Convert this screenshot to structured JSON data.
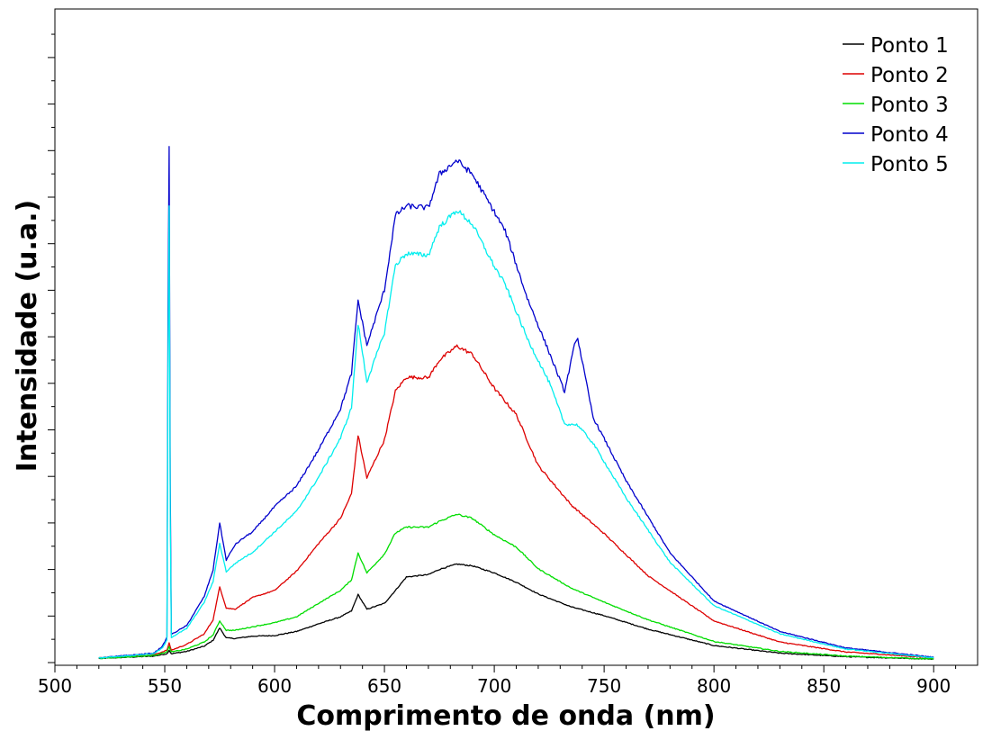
{
  "chart_data": {
    "type": "line",
    "xlabel": "Comprimento de onda (nm)",
    "ylabel": "Intensidade (u.a.)",
    "xlim": [
      500,
      920
    ],
    "ylim": [
      0,
      100
    ],
    "y_ticks_labeled": false,
    "x_ticks": [
      "500",
      "550",
      "600",
      "650",
      "700",
      "750",
      "800",
      "850",
      "900"
    ],
    "grid": false,
    "legend_position": "top-right",
    "series": [
      {
        "name": "Ponto 1",
        "color": "#000000",
        "x": [
          520,
          545,
          551,
          552,
          553,
          560,
          568,
          572,
          575,
          578,
          582,
          590,
          600,
          610,
          620,
          630,
          635,
          638,
          642,
          650,
          655,
          660,
          670,
          675,
          683,
          690,
          700,
          710,
          720,
          735,
          750,
          770,
          800,
          830,
          860,
          900
        ],
        "y": [
          0.4,
          0.8,
          1.2,
          1.8,
          1.2,
          1.6,
          2.5,
          3.5,
          5.6,
          3.9,
          3.8,
          4.2,
          4.3,
          5.0,
          6.3,
          7.5,
          8.5,
          11.3,
          8.8,
          9.8,
          12.0,
          14.3,
          14.7,
          15.6,
          16.5,
          16.2,
          15.0,
          13.4,
          11.4,
          9.2,
          7.7,
          5.4,
          2.6,
          1.3,
          0.7,
          0.3
        ]
      },
      {
        "name": "Ponto 2",
        "color": "#dd0000",
        "x": [
          520,
          545,
          551,
          552,
          553,
          560,
          568,
          572,
          575,
          578,
          582,
          590,
          600,
          610,
          620,
          630,
          635,
          638,
          642,
          650,
          655,
          660,
          670,
          675,
          683,
          690,
          700,
          710,
          720,
          735,
          750,
          770,
          800,
          830,
          860,
          900
        ],
        "y": [
          0.5,
          1.0,
          1.8,
          3.0,
          1.8,
          2.8,
          4.6,
          7.0,
          12.6,
          9.0,
          8.8,
          10.8,
          12.0,
          15.3,
          20.0,
          24.3,
          28.5,
          38.5,
          31.2,
          37.7,
          46.0,
          48.4,
          48.3,
          51.3,
          53.7,
          52.3,
          46.5,
          42.0,
          33.3,
          26.6,
          21.7,
          14.5,
          6.8,
          3.2,
          1.5,
          0.5
        ]
      },
      {
        "name": "Ponto 3",
        "color": "#00dd00",
        "x": [
          520,
          545,
          551,
          552,
          553,
          560,
          568,
          572,
          575,
          578,
          582,
          590,
          600,
          610,
          620,
          630,
          635,
          638,
          642,
          650,
          655,
          660,
          670,
          675,
          683,
          690,
          700,
          710,
          720,
          735,
          750,
          770,
          800,
          830,
          860,
          900
        ],
        "y": [
          0.4,
          0.9,
          1.5,
          2.4,
          1.5,
          2.0,
          3.2,
          4.4,
          6.8,
          5.2,
          5.2,
          5.8,
          6.5,
          7.5,
          9.8,
          12.0,
          13.8,
          18.4,
          15.0,
          18.2,
          21.8,
          22.8,
          22.8,
          23.8,
          25.0,
          24.3,
          21.5,
          19.4,
          15.7,
          12.4,
          10.0,
          7.0,
          3.3,
          1.6,
          0.8,
          0.3
        ]
      },
      {
        "name": "Ponto 4",
        "color": "#0000cc",
        "x": [
          520,
          545,
          549,
          551,
          551.5,
          552,
          552.5,
          553,
          560,
          568,
          572,
          575,
          578,
          582,
          586,
          590,
          600,
          610,
          620,
          630,
          635,
          638,
          642,
          650,
          655,
          660,
          670,
          675,
          683,
          690,
          700,
          705,
          715,
          725,
          732,
          737,
          738,
          745,
          760,
          780,
          800,
          830,
          860,
          900
        ],
        "y": [
          0.5,
          1.3,
          2.5,
          4.0,
          60.0,
          88.0,
          30.0,
          4.5,
          6.0,
          11.0,
          15.5,
          23.5,
          17.2,
          19.8,
          21.0,
          22.0,
          26.3,
          29.8,
          36.0,
          43.0,
          49.0,
          61.5,
          53.8,
          63.3,
          76.0,
          77.6,
          77.3,
          83.0,
          85.4,
          83.0,
          76.6,
          73.3,
          61.9,
          52.6,
          45.9,
          54.7,
          55.0,
          41.5,
          30.7,
          18.4,
          10.2,
          5.0,
          2.2,
          0.6
        ]
      },
      {
        "name": "Ponto 5",
        "color": "#00eeee",
        "x": [
          520,
          545,
          549,
          551,
          551.5,
          552,
          552.5,
          553,
          560,
          568,
          572,
          575,
          578,
          582,
          586,
          590,
          600,
          610,
          620,
          630,
          635,
          638,
          642,
          650,
          655,
          660,
          670,
          675,
          683,
          690,
          700,
          705,
          715,
          725,
          732,
          737,
          738,
          745,
          760,
          780,
          800,
          830,
          860,
          900
        ],
        "y": [
          0.5,
          1.2,
          2.2,
          3.5,
          50.0,
          78.0,
          25.0,
          4.0,
          5.5,
          10.0,
          13.5,
          20.0,
          15.2,
          16.6,
          17.6,
          18.5,
          22.0,
          25.5,
          31.3,
          38.0,
          43.2,
          57.5,
          47.6,
          56.0,
          67.5,
          69.5,
          69.2,
          74.0,
          76.9,
          74.5,
          67.3,
          64.2,
          55.0,
          47.5,
          40.4,
          40.3,
          40.2,
          37.1,
          27.8,
          16.8,
          9.4,
          4.6,
          2.0,
          0.5
        ]
      }
    ]
  }
}
